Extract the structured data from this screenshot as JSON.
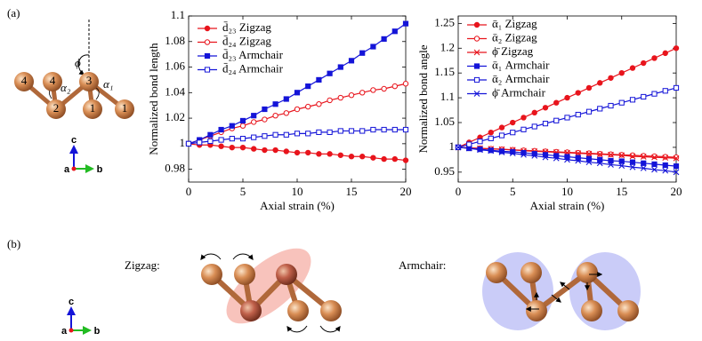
{
  "chart_data": [
    {
      "type": "line",
      "ylabel": "Normalized bond length",
      "xlabel": "Axial strain (%)",
      "legend": "upper left",
      "x": [
        0,
        1,
        2,
        3,
        4,
        5,
        6,
        7,
        8,
        9,
        10,
        11,
        12,
        13,
        14,
        15,
        16,
        17,
        18,
        19,
        20
      ],
      "xlim": [
        0,
        20
      ],
      "xticks": [
        0,
        5,
        10,
        15,
        20
      ],
      "ylim": [
        0.97,
        1.1
      ],
      "yticks": [
        0.98,
        1,
        1.02,
        1.04,
        1.06,
        1.08,
        1.1
      ],
      "series": [
        {
          "name": "d̄₂₃ Zigzag",
          "color": "#e8141c",
          "marker": "filled-circle",
          "values": [
            1,
            0.999,
            0.999,
            0.998,
            0.997,
            0.997,
            0.996,
            0.995,
            0.995,
            0.994,
            0.993,
            0.993,
            0.992,
            0.992,
            0.991,
            0.99,
            0.99,
            0.989,
            0.988,
            0.988,
            0.987
          ]
        },
        {
          "name": "d̄₂₄ Zigzag",
          "color": "#e8141c",
          "marker": "open-circle",
          "values": [
            1,
            1.003,
            1.006,
            1.009,
            1.012,
            1.014,
            1.017,
            1.019,
            1.022,
            1.024,
            1.027,
            1.029,
            1.031,
            1.034,
            1.036,
            1.038,
            1.04,
            1.042,
            1.043,
            1.045,
            1.047
          ]
        },
        {
          "name": "d̄₂₃ Armchair",
          "color": "#1414d8",
          "marker": "filled-square",
          "values": [
            1,
            1.003,
            1.007,
            1.011,
            1.014,
            1.018,
            1.022,
            1.027,
            1.031,
            1.035,
            1.04,
            1.045,
            1.05,
            1.055,
            1.06,
            1.065,
            1.071,
            1.076,
            1.082,
            1.088,
            1.094
          ]
        },
        {
          "name": "d̄₂₄ Armchair",
          "color": "#1414d8",
          "marker": "open-square",
          "values": [
            1,
            1.001,
            1.002,
            1.003,
            1.004,
            1.004,
            1.005,
            1.006,
            1.007,
            1.007,
            1.008,
            1.008,
            1.009,
            1.009,
            1.01,
            1.01,
            1.01,
            1.011,
            1.011,
            1.011,
            1.011
          ]
        }
      ]
    },
    {
      "type": "line",
      "ylabel": "Normalized bond angle",
      "xlabel": "Axial strain (%)",
      "legend": "upper left",
      "x": [
        0,
        1,
        2,
        3,
        4,
        5,
        6,
        7,
        8,
        9,
        10,
        11,
        12,
        13,
        14,
        15,
        16,
        17,
        18,
        19,
        20
      ],
      "xlim": [
        0,
        20
      ],
      "xticks": [
        0,
        5,
        10,
        15,
        20
      ],
      "ylim": [
        0.93,
        1.265
      ],
      "yticks": [
        0.95,
        1,
        1.05,
        1.1,
        1.15,
        1.2,
        1.25
      ],
      "series": [
        {
          "name": "ᾱ₁ Zigzag",
          "color": "#e8141c",
          "marker": "filled-circle",
          "values": [
            1,
            1.01,
            1.02,
            1.03,
            1.04,
            1.05,
            1.06,
            1.07,
            1.08,
            1.09,
            1.1,
            1.11,
            1.12,
            1.13,
            1.14,
            1.15,
            1.16,
            1.17,
            1.18,
            1.19,
            1.2
          ]
        },
        {
          "name": "ᾱ₂ Zigzag",
          "color": "#e8141c",
          "marker": "open-circle",
          "values": [
            1,
            0.999,
            0.998,
            0.997,
            0.996,
            0.995,
            0.994,
            0.993,
            0.992,
            0.991,
            0.99,
            0.989,
            0.988,
            0.987,
            0.986,
            0.985,
            0.984,
            0.983,
            0.982,
            0.981,
            0.98
          ]
        },
        {
          "name": "ϕ̄ Zigzag",
          "color": "#e8141c",
          "marker": "cross",
          "values": [
            1,
            0.999,
            0.998,
            0.997,
            0.996,
            0.995,
            0.993,
            0.992,
            0.991,
            0.99,
            0.989,
            0.988,
            0.987,
            0.986,
            0.985,
            0.984,
            0.982,
            0.981,
            0.98,
            0.979,
            0.978
          ]
        },
        {
          "name": "ᾱ₁ Armchair",
          "color": "#1414d8",
          "marker": "filled-square",
          "values": [
            1,
            0.998,
            0.996,
            0.994,
            0.992,
            0.991,
            0.989,
            0.987,
            0.985,
            0.983,
            0.981,
            0.979,
            0.977,
            0.975,
            0.973,
            0.972,
            0.97,
            0.968,
            0.966,
            0.964,
            0.962
          ]
        },
        {
          "name": "ᾱ₂ Armchair",
          "color": "#1414d8",
          "marker": "open-square",
          "values": [
            1,
            1.006,
            1.012,
            1.018,
            1.024,
            1.03,
            1.036,
            1.042,
            1.048,
            1.054,
            1.06,
            1.066,
            1.072,
            1.078,
            1.084,
            1.09,
            1.096,
            1.102,
            1.108,
            1.114,
            1.12
          ]
        },
        {
          "name": "ϕ̄ Armchair",
          "color": "#1414d8",
          "marker": "cross",
          "values": [
            1,
            0.998,
            0.995,
            0.993,
            0.99,
            0.988,
            0.985,
            0.983,
            0.98,
            0.978,
            0.975,
            0.973,
            0.97,
            0.968,
            0.965,
            0.963,
            0.96,
            0.958,
            0.955,
            0.953,
            0.95
          ]
        }
      ]
    }
  ],
  "panel_labels": [
    "(a)",
    "(b)"
  ],
  "structure": {
    "atoms": [
      "4",
      "4",
      "2",
      "3",
      "1",
      "1"
    ],
    "angles": [
      "ϕ",
      "α₂",
      "α₁"
    ]
  },
  "axes_icons": [
    {
      "c": "c",
      "a": "a",
      "b": "b"
    },
    {
      "c": "c",
      "a": "a",
      "b": "b"
    }
  ],
  "modes": [
    "Zigzag:",
    "Armchair:"
  ]
}
